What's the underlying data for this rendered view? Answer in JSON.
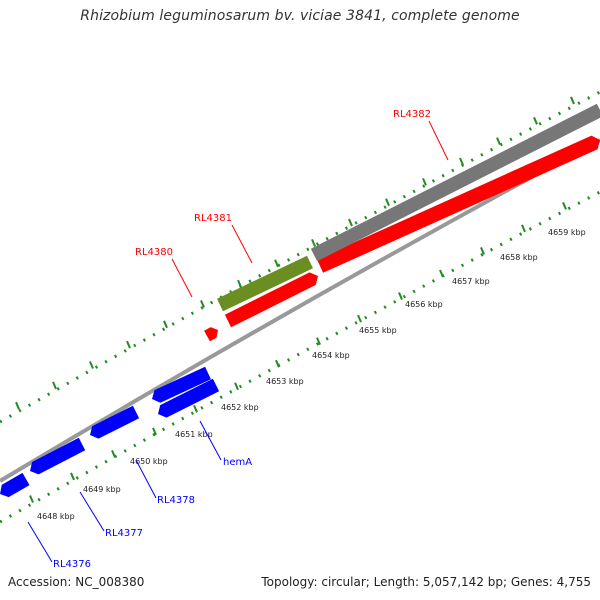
{
  "title": "Rhizobium leguminosarum bv. viciae 3841, complete genome",
  "footer": {
    "accession": "Accession: NC_008380",
    "topology": "Topology: circular; Length: 5,057,142 bp; Genes: 4,755"
  },
  "colors": {
    "forward_gene": "#ff0000",
    "reverse_gene": "#0000ff",
    "gene_other_1": "#6b8e23",
    "gene_other_2": "#777777",
    "backbone": "#999999",
    "ticks": "#228b22"
  },
  "kbp_labels": [
    "4648 kbp",
    "4649 kbp",
    "4650 kbp",
    "4651 kbp",
    "4652 kbp",
    "4653 kbp",
    "4654 kbp",
    "4655 kbp",
    "4656 kbp",
    "4657 kbp",
    "4658 kbp",
    "4659 kbp"
  ],
  "gene_labels": [
    {
      "name": "RL4382",
      "strand": "forward"
    },
    {
      "name": "RL4381",
      "strand": "forward"
    },
    {
      "name": "RL4380",
      "strand": "forward"
    },
    {
      "name": "hemA",
      "strand": "reverse"
    },
    {
      "name": "RL4378",
      "strand": "reverse"
    },
    {
      "name": "RL4377",
      "strand": "reverse"
    },
    {
      "name": "RL4376",
      "strand": "reverse"
    }
  ]
}
